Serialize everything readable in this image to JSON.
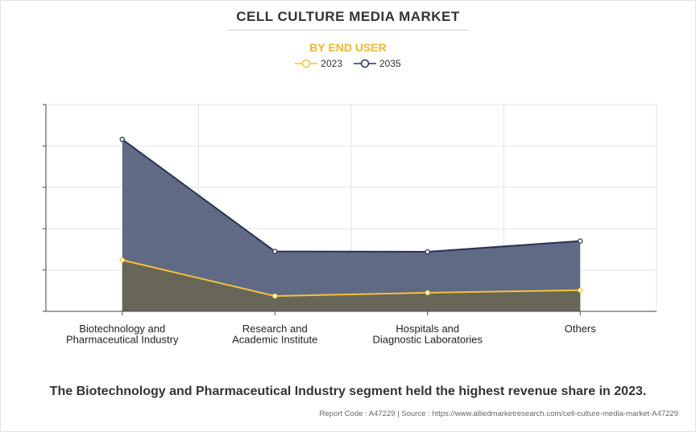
{
  "header": {
    "title": "CELL CULTURE MEDIA MARKET",
    "subtitle": "BY END USER"
  },
  "colors": {
    "series_2023_line": "#f5c23a",
    "series_2035_line": "#263457",
    "area_2035_fill": "#606a85",
    "area_2023_fill": "#676659",
    "subtitle": "#f2b630"
  },
  "chart_data": {
    "type": "area",
    "categories": [
      [
        "Biotechnology and",
        "Pharmaceutical Industry"
      ],
      [
        "Research and",
        "Academic Institute"
      ],
      [
        "Hospitals and",
        "Diagnostic Laboratories"
      ],
      [
        "Others"
      ]
    ],
    "ylim": [
      0,
      5
    ],
    "y_tick_count": 6,
    "y_ticks_labeled": false,
    "grid": true,
    "legend_position": "top-center",
    "series": [
      {
        "name": "2023",
        "values": [
          1.24,
          0.37,
          0.45,
          0.51
        ]
      },
      {
        "name": "2035",
        "values": [
          4.16,
          1.45,
          1.44,
          1.7
        ]
      }
    ]
  },
  "footer": {
    "headline": "The Biotechnology and Pharmaceutical Industry segment held the highest revenue share in 2023.",
    "source": "Report Code : A47229  |  Source : https://www.alliedmarketresearch.com/cell-culture-media-market-A47229"
  }
}
